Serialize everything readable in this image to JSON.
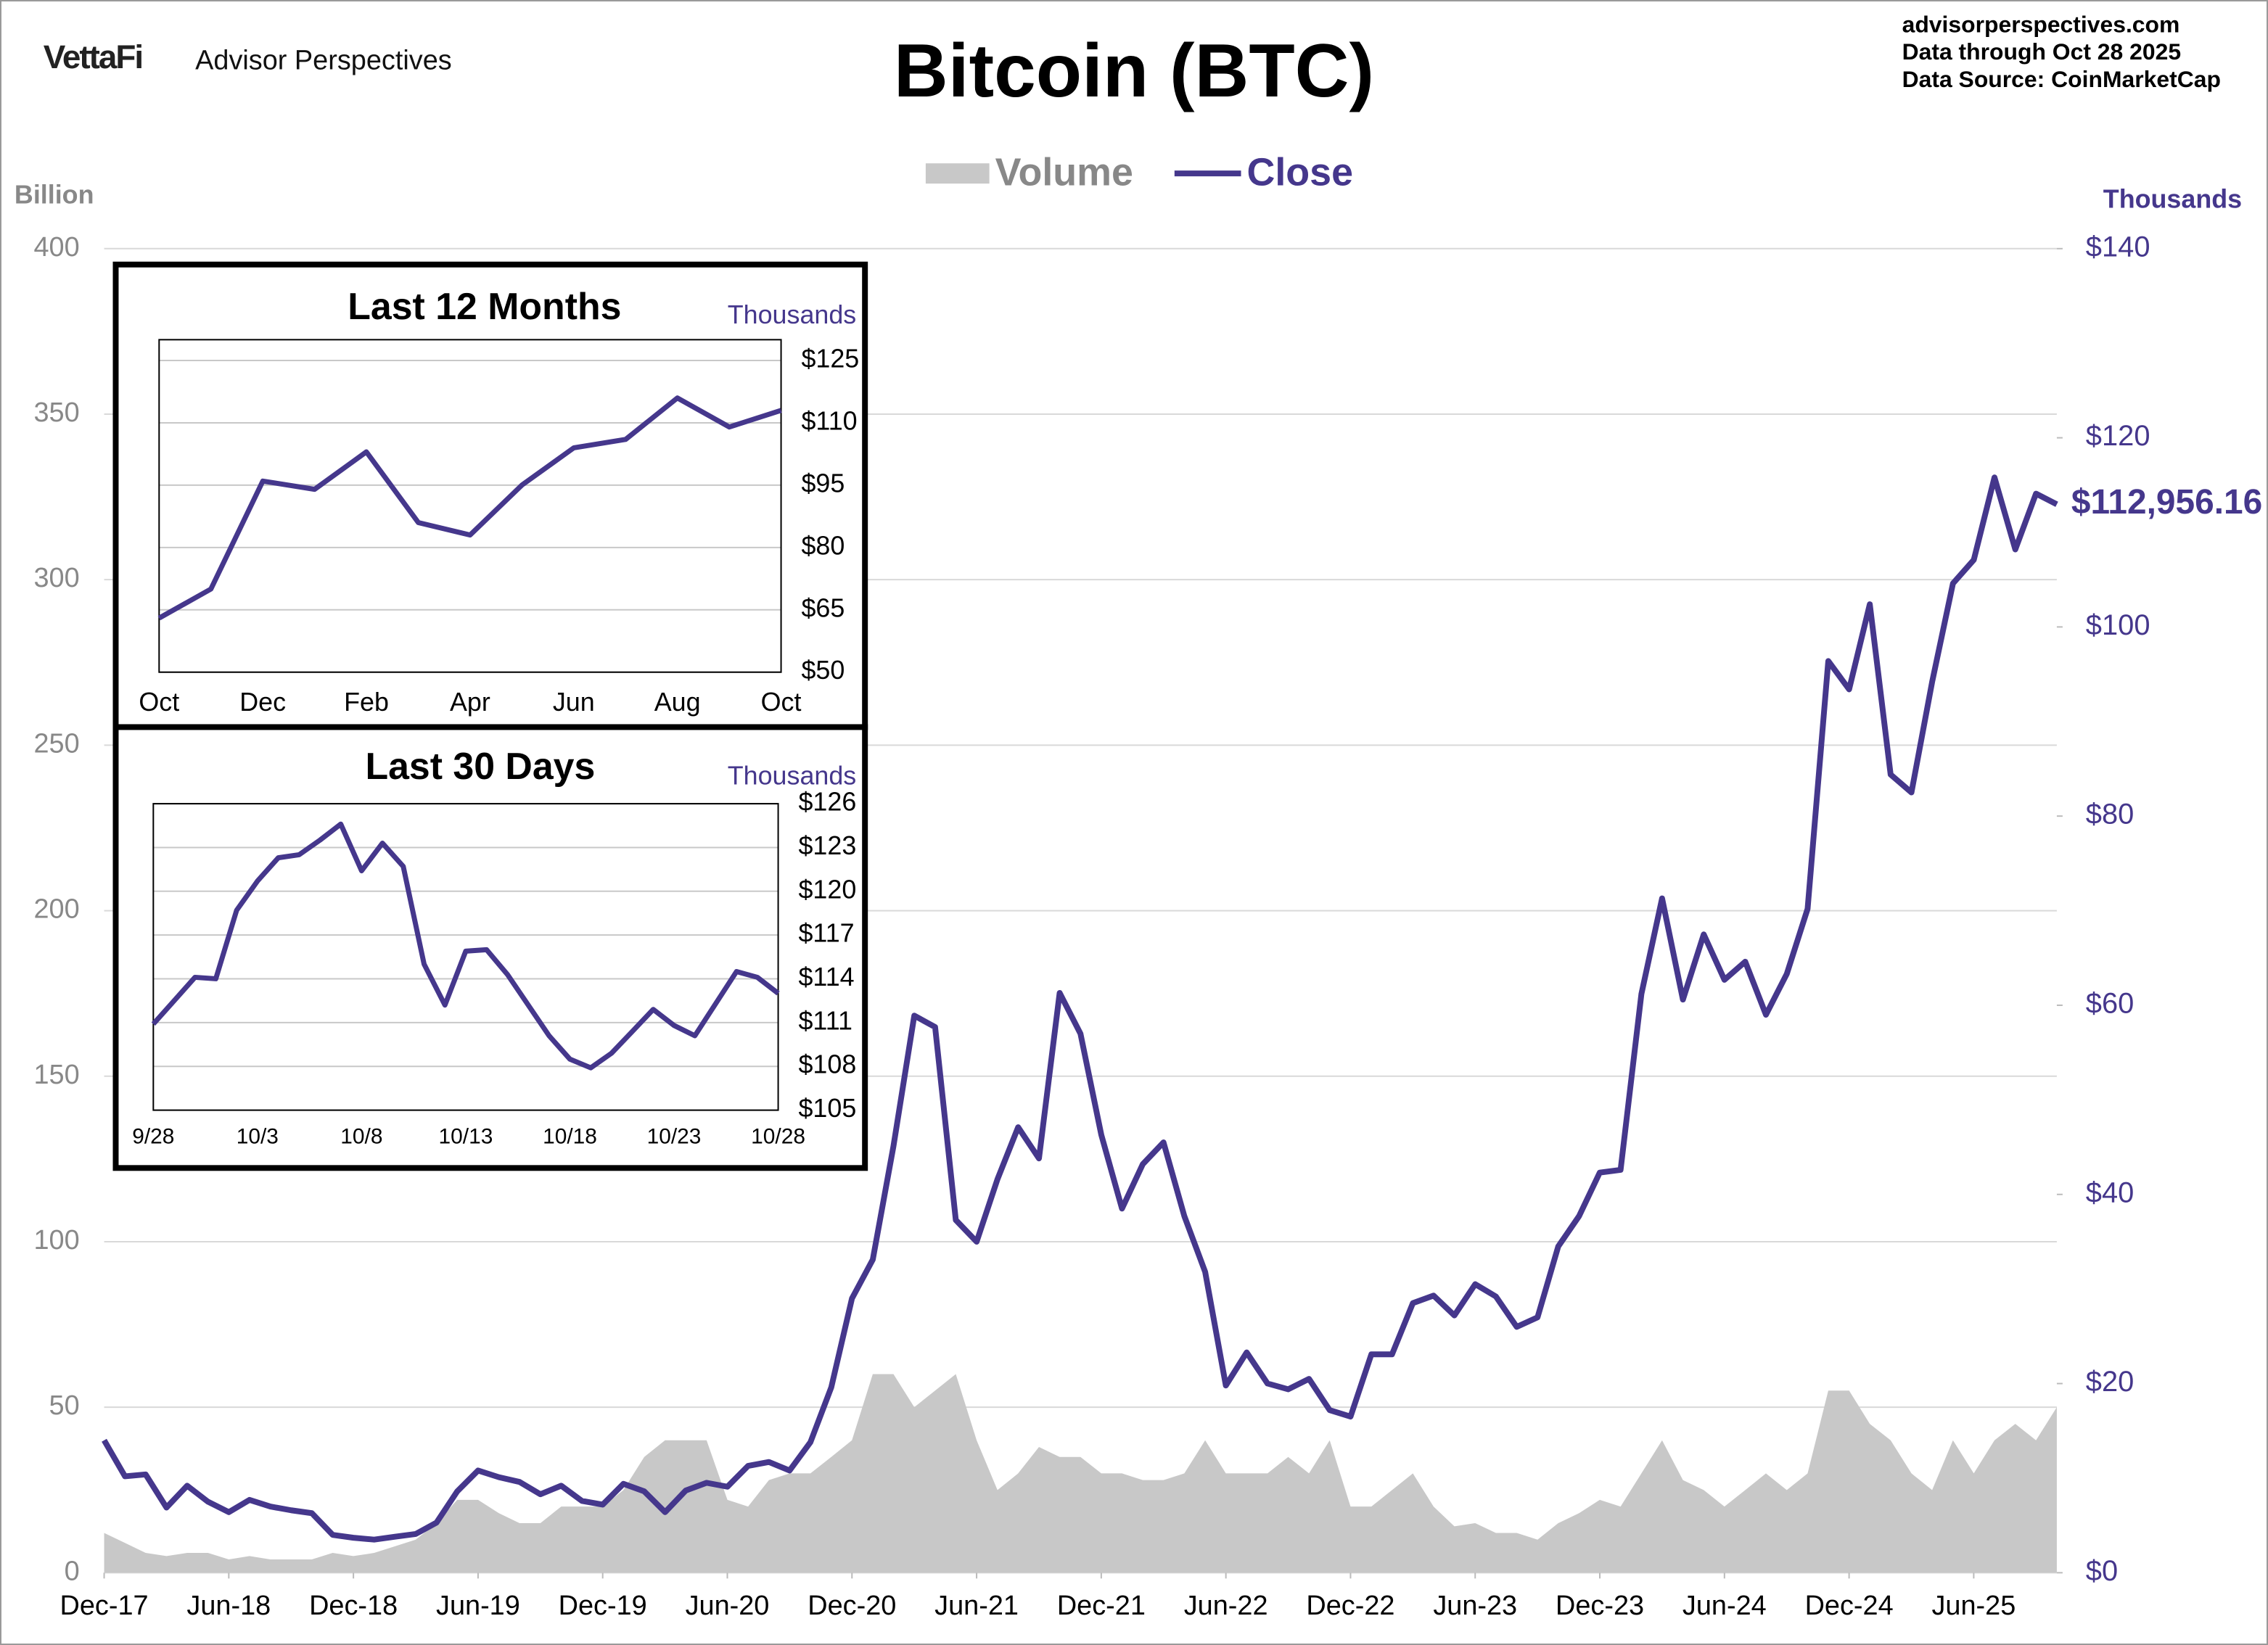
{
  "chart_data": [
    {
      "type": "line",
      "title": "Bitcoin (BTC)",
      "brand_logo": "VettaFi",
      "brand": "Advisor Perspectives",
      "source_lines": [
        "advisorperspectives.com",
        "Data through  Oct 28 2025",
        "Data Source:  CoinMarketCap"
      ],
      "y_label": "Billion",
      "y2_label": "Thousands",
      "legend": "top",
      "grid": true,
      "x": [
        "2017-12",
        "2018-01",
        "2018-02",
        "2018-03",
        "2018-04",
        "2018-05",
        "2018-06",
        "2018-07",
        "2018-08",
        "2018-09",
        "2018-10",
        "2018-11",
        "2018-12",
        "2019-01",
        "2019-02",
        "2019-03",
        "2019-04",
        "2019-05",
        "2019-06",
        "2019-07",
        "2019-08",
        "2019-09",
        "2019-10",
        "2019-11",
        "2019-12",
        "2020-01",
        "2020-02",
        "2020-03",
        "2020-04",
        "2020-05",
        "2020-06",
        "2020-07",
        "2020-08",
        "2020-09",
        "2020-10",
        "2020-11",
        "2020-12",
        "2021-01",
        "2021-02",
        "2021-03",
        "2021-04",
        "2021-05",
        "2021-06",
        "2021-07",
        "2021-08",
        "2021-09",
        "2021-10",
        "2021-11",
        "2021-12",
        "2022-01",
        "2022-02",
        "2022-03",
        "2022-04",
        "2022-05",
        "2022-06",
        "2022-07",
        "2022-08",
        "2022-09",
        "2022-10",
        "2022-11",
        "2022-12",
        "2023-01",
        "2023-02",
        "2023-03",
        "2023-04",
        "2023-05",
        "2023-06",
        "2023-07",
        "2023-08",
        "2023-09",
        "2023-10",
        "2023-11",
        "2023-12",
        "2024-01",
        "2024-02",
        "2024-03",
        "2024-04",
        "2024-05",
        "2024-06",
        "2024-07",
        "2024-08",
        "2024-09",
        "2024-10",
        "2024-11",
        "2024-12",
        "2025-01",
        "2025-02",
        "2025-03",
        "2025-04",
        "2025-05",
        "2025-06",
        "2025-07",
        "2025-08",
        "2025-09",
        "2025-10"
      ],
      "xlim": [
        "2017-12",
        "2025-10"
      ],
      "xticks": [
        {
          "value": "2017-12",
          "label": "Dec-17"
        },
        {
          "value": "2018-06",
          "label": "Jun-18"
        },
        {
          "value": "2018-12",
          "label": "Dec-18"
        },
        {
          "value": "2019-06",
          "label": "Jun-19"
        },
        {
          "value": "2019-12",
          "label": "Dec-19"
        },
        {
          "value": "2020-06",
          "label": "Jun-20"
        },
        {
          "value": "2020-12",
          "label": "Dec-20"
        },
        {
          "value": "2021-06",
          "label": "Jun-21"
        },
        {
          "value": "2021-12",
          "label": "Dec-21"
        },
        {
          "value": "2022-06",
          "label": "Jun-22"
        },
        {
          "value": "2022-12",
          "label": "Dec-22"
        },
        {
          "value": "2023-06",
          "label": "Jun-23"
        },
        {
          "value": "2023-12",
          "label": "Dec-23"
        },
        {
          "value": "2024-06",
          "label": "Jun-24"
        },
        {
          "value": "2024-12",
          "label": "Dec-24"
        },
        {
          "value": "2025-06",
          "label": "Jun-25"
        }
      ],
      "ylim": [
        0,
        400
      ],
      "yticks": [
        0,
        50,
        100,
        150,
        200,
        250,
        300,
        350,
        400
      ],
      "y2lim": [
        0,
        140
      ],
      "y2ticks": [
        {
          "value": 0,
          "label": "$0"
        },
        {
          "value": 20,
          "label": "$20"
        },
        {
          "value": 40,
          "label": "$40"
        },
        {
          "value": 60,
          "label": "$60"
        },
        {
          "value": 80,
          "label": "$80"
        },
        {
          "value": 100,
          "label": "$100"
        },
        {
          "value": 120,
          "label": "$120"
        },
        {
          "value": 140,
          "label": "$140"
        }
      ],
      "series": [
        {
          "name": "Volume",
          "type": "area",
          "color": "#c8c8c8",
          "values": [
            12,
            9,
            6,
            5,
            6,
            6,
            4,
            5,
            4,
            4,
            4,
            6,
            5,
            6,
            8,
            10,
            15,
            22,
            22,
            18,
            15,
            15,
            20,
            20,
            20,
            25,
            35,
            40,
            40,
            40,
            22,
            20,
            28,
            30,
            30,
            35,
            40,
            60,
            60,
            50,
            55,
            60,
            40,
            25,
            30,
            38,
            35,
            35,
            30,
            30,
            28,
            28,
            30,
            40,
            30,
            30,
            30,
            35,
            30,
            40,
            20,
            20,
            25,
            30,
            20,
            14,
            15,
            12,
            12,
            10,
            15,
            18,
            22,
            20,
            30,
            40,
            28,
            25,
            20,
            25,
            30,
            25,
            30,
            55,
            55,
            45,
            40,
            30,
            25,
            40,
            30,
            40,
            45,
            40,
            50
          ]
        },
        {
          "name": "Close",
          "type": "line",
          "axis": "y2",
          "color": "#45378c",
          "values": [
            14,
            10.2,
            10.4,
            6.9,
            9.2,
            7.5,
            6.4,
            7.7,
            7.0,
            6.6,
            6.3,
            4.0,
            3.7,
            3.5,
            3.8,
            4.1,
            5.3,
            8.6,
            10.8,
            10.1,
            9.6,
            8.3,
            9.2,
            7.6,
            7.2,
            9.4,
            8.6,
            6.4,
            8.7,
            9.5,
            9.1,
            11.3,
            11.7,
            10.8,
            13.8,
            19.6,
            29.0,
            33.1,
            45.1,
            58.9,
            57.7,
            37.3,
            35.0,
            41.6,
            47.1,
            43.8,
            61.3,
            57.0,
            46.3,
            38.5,
            43.2,
            45.5,
            37.7,
            31.8,
            19.8,
            23.3,
            20.0,
            19.4,
            20.5,
            17.2,
            16.5,
            23.1,
            23.1,
            28.5,
            29.3,
            27.2,
            30.5,
            29.2,
            26.0,
            27.0,
            34.5,
            37.7,
            42.3,
            42.6,
            61.2,
            71.3,
            60.6,
            67.5,
            62.7,
            64.6,
            59.0,
            63.3,
            70.2,
            96.4,
            93.4,
            102.4,
            84.4,
            82.5,
            94.2,
            104.6,
            107.1,
            115.8,
            108.2,
            114.1,
            112.956
          ]
        }
      ],
      "annotation": "$112,956.16"
    },
    {
      "type": "line",
      "title": "Last 12 Months",
      "y_label": "Thousands",
      "grid": true,
      "color": "#45378c",
      "categories": [
        "Oct",
        null,
        "Dec",
        null,
        "Feb",
        null,
        "Apr",
        null,
        "Jun",
        null,
        "Aug",
        null,
        "Oct"
      ],
      "values": [
        63,
        70,
        96,
        94,
        103,
        86,
        83,
        95,
        104,
        106,
        116,
        109,
        113
      ],
      "ylim": [
        50,
        130
      ],
      "yticks": [
        {
          "value": 50,
          "label": "$50"
        },
        {
          "value": 65,
          "label": "$65"
        },
        {
          "value": 80,
          "label": "$80"
        },
        {
          "value": 95,
          "label": "$95"
        },
        {
          "value": 110,
          "label": "$110"
        },
        {
          "value": 125,
          "label": "$125"
        }
      ]
    },
    {
      "type": "line",
      "title": "Last 30 Days",
      "y_label": "Thousands",
      "grid": true,
      "color": "#45378c",
      "categories": [
        "9/28",
        null,
        null,
        null,
        null,
        "10/3",
        null,
        null,
        null,
        null,
        "10/8",
        null,
        null,
        null,
        null,
        "10/13",
        null,
        null,
        null,
        null,
        "10/18",
        null,
        null,
        null,
        null,
        "10/23",
        null,
        null,
        null,
        null,
        "10/28"
      ],
      "values": [
        110.9,
        112.5,
        114.1,
        114.0,
        118.7,
        120.7,
        122.3,
        122.5,
        123.5,
        124.6,
        121.4,
        123.3,
        121.7,
        115.0,
        112.2,
        115.9,
        116.0,
        114.3,
        112.2,
        110.1,
        108.5,
        107.9,
        108.9,
        110.4,
        111.9,
        110.8,
        110.1,
        112.3,
        114.5,
        114.1,
        113.0
      ],
      "ylim": [
        105,
        126
      ],
      "yticks": [
        {
          "value": 105,
          "label": "$105"
        },
        {
          "value": 108,
          "label": "$108"
        },
        {
          "value": 111,
          "label": "$111"
        },
        {
          "value": 114,
          "label": "$114"
        },
        {
          "value": 117,
          "label": "$117"
        },
        {
          "value": 120,
          "label": "$120"
        },
        {
          "value": 123,
          "label": "$123"
        },
        {
          "value": 126,
          "label": "$126"
        }
      ]
    }
  ]
}
